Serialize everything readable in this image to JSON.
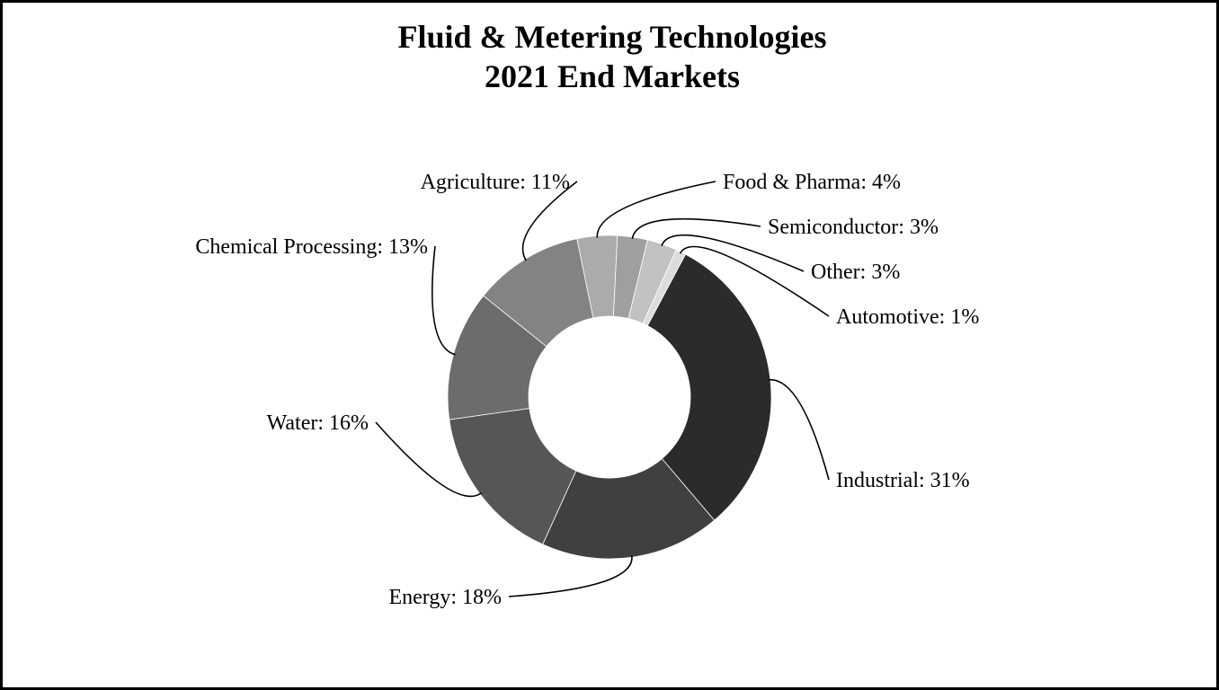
{
  "chart_data": {
    "type": "pie",
    "donut": true,
    "title_lines": [
      "Fluid & Metering Technologies",
      "2021 End Markets"
    ],
    "start_angle_deg": 62,
    "direction": "clockwise",
    "slices": [
      {
        "label": "Industrial",
        "value": 31,
        "text": "Industrial: 31%",
        "color": "#2b2b2b"
      },
      {
        "label": "Energy",
        "value": 18,
        "text": "Energy: 18%",
        "color": "#404040"
      },
      {
        "label": "Water",
        "value": 16,
        "text": "Water: 16%",
        "color": "#565656"
      },
      {
        "label": "Chemical Processing",
        "value": 13,
        "text": "Chemical Processing: 13%",
        "color": "#6c6c6c"
      },
      {
        "label": "Agriculture",
        "value": 11,
        "text": "Agriculture: 11%",
        "color": "#838383"
      },
      {
        "label": "Food & Pharma",
        "value": 4,
        "text": "Food & Pharma: 4%",
        "color": "#ababab"
      },
      {
        "label": "Semiconductor",
        "value": 3,
        "text": "Semiconductor: 3%",
        "color": "#9f9f9f"
      },
      {
        "label": "Other",
        "value": 3,
        "text": "Other: 3%",
        "color": "#c2c2c2"
      },
      {
        "label": "Automotive",
        "value": 1,
        "text": "Automotive: 1%",
        "color": "#dcdcdc"
      }
    ]
  }
}
